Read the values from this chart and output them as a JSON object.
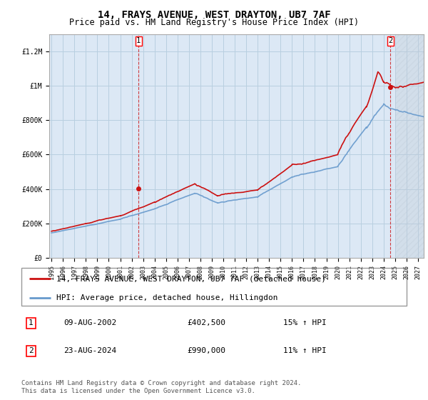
{
  "title": "14, FRAYS AVENUE, WEST DRAYTON, UB7 7AF",
  "subtitle": "Price paid vs. HM Land Registry's House Price Index (HPI)",
  "legend_label_red": "14, FRAYS AVENUE, WEST DRAYTON, UB7 7AF (detached house)",
  "legend_label_blue": "HPI: Average price, detached house, Hillingdon",
  "annotation1_date": "09-AUG-2002",
  "annotation1_price": "£402,500",
  "annotation1_hpi": "15% ↑ HPI",
  "annotation2_date": "23-AUG-2024",
  "annotation2_price": "£990,000",
  "annotation2_hpi": "11% ↑ HPI",
  "footer": "Contains HM Land Registry data © Crown copyright and database right 2024.\nThis data is licensed under the Open Government Licence v3.0.",
  "plot_background": "#dce8f5",
  "grid_color": "#b8cfe0",
  "red_color": "#cc1111",
  "blue_color": "#6699cc",
  "hatch_color": "#c0ccd8",
  "ylim": [
    0,
    1300000
  ],
  "yticks": [
    0,
    200000,
    400000,
    600000,
    800000,
    1000000,
    1200000
  ],
  "ytick_labels": [
    "£0",
    "£200K",
    "£400K",
    "£600K",
    "£800K",
    "£1M",
    "£1.2M"
  ],
  "xmin": 1995.0,
  "xmax": 2027.5,
  "point1_x": 2002.6,
  "point1_y": 402500,
  "point2_x": 2024.6,
  "point2_y": 990000,
  "hatch_start": 2025.0,
  "title_fontsize": 10,
  "subtitle_fontsize": 8.5,
  "tick_fontsize": 7,
  "legend_fontsize": 8,
  "annotation_fontsize": 8,
  "footer_fontsize": 6.5
}
